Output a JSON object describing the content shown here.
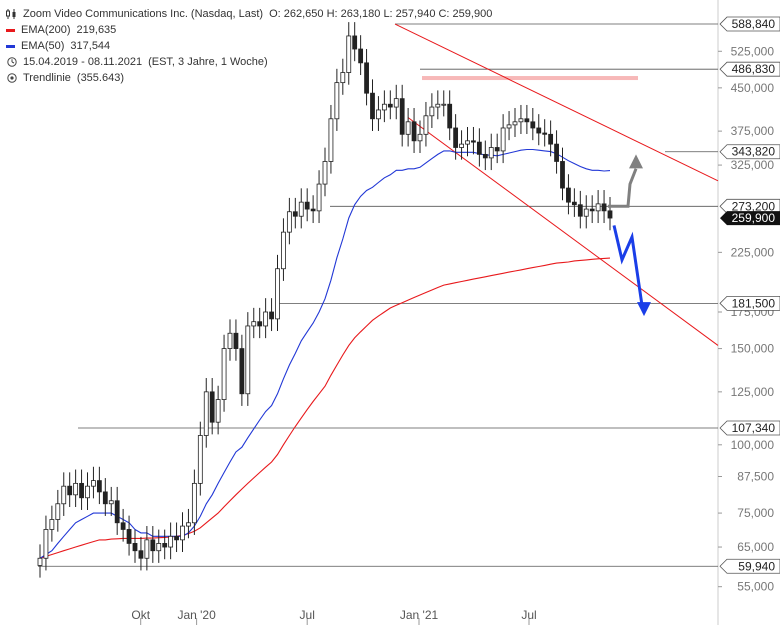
{
  "header": {
    "title": "Zoom Video Communications Inc. (Nasdaq, Last)",
    "ohlc": "O: 262,650   H: 263,180   L: 257,940   C: 259,900",
    "ema200_label": "EMA(200)",
    "ema200_value": "219,635",
    "ema50_label": "EMA(50)",
    "ema50_value": "317,544",
    "period": "15.04.2019 - 08.11.2021",
    "settings": "(EST, 3 Jahre, 1 Woche)",
    "trendline_label": "Trendlinie",
    "trendline_value": "(355.643)"
  },
  "colors": {
    "ema200": "#e8191c",
    "ema50": "#2238d6",
    "channel": "#e8191c",
    "resistance_band": "#f7b8b8",
    "arrow_up": "#808080",
    "arrow_down": "#1a3ee8",
    "level_line": "#555555",
    "last_price_bg": "#111111"
  },
  "chart_data": {
    "type": "candlestick",
    "scale": "log",
    "ylim": [
      52,
      630
    ],
    "x_ticks": [
      {
        "label": "Okt",
        "date": "2019-10-01"
      },
      {
        "label": "Jan '20",
        "date": "2020-01-01"
      },
      {
        "label": "Jul",
        "date": "2020-07-01"
      },
      {
        "label": "Jan '21",
        "date": "2021-01-01"
      },
      {
        "label": "Jul",
        "date": "2021-07-01"
      }
    ],
    "y_ticks": [
      "55,000",
      "65,000",
      "75,000",
      "87,500",
      "100,000",
      "125,000",
      "150,000",
      "175,000",
      "225,000",
      "325,000",
      "375,000",
      "450,000",
      "525,000"
    ],
    "levels": [
      "588,840",
      "486,830",
      "343,820",
      "273,200",
      "181,500",
      "107,340",
      "59,940"
    ],
    "last_price": "259,900",
    "candles_weekly_close": [
      62,
      70,
      73,
      78,
      84,
      81,
      85,
      80,
      84,
      86,
      82,
      78,
      79,
      72,
      70,
      66,
      64,
      62,
      67,
      64,
      66,
      65,
      68,
      67,
      71,
      72,
      85,
      104,
      125,
      110,
      121,
      150,
      160,
      150,
      124,
      165,
      168,
      165,
      175,
      170,
      210,
      245,
      267,
      262,
      278,
      270,
      268,
      300,
      330,
      395,
      460,
      480,
      560,
      530,
      500,
      440,
      395,
      410,
      420,
      415,
      430,
      370,
      390,
      360,
      370,
      400,
      415,
      420,
      420,
      380,
      350,
      355,
      360,
      358,
      340,
      335,
      350,
      345,
      380,
      385,
      390,
      395,
      390,
      380,
      372,
      370,
      355,
      330,
      295,
      278,
      275,
      262,
      270,
      268,
      276,
      268,
      260
    ],
    "ema50": [
      62,
      63,
      64,
      66,
      68,
      70,
      72,
      73,
      74,
      75,
      75,
      75,
      75,
      74,
      73,
      72,
      70,
      69,
      69,
      68,
      68,
      68,
      68,
      68,
      68,
      69,
      71,
      74,
      78,
      81,
      85,
      89,
      93,
      97,
      99,
      103,
      107,
      111,
      115,
      118,
      124,
      132,
      140,
      147,
      155,
      161,
      167,
      175,
      185,
      200,
      220,
      238,
      260,
      275,
      285,
      292,
      296,
      302,
      308,
      312,
      318,
      318,
      320,
      320,
      322,
      328,
      334,
      340,
      345,
      345,
      343,
      343,
      343,
      343,
      341,
      339,
      339,
      338,
      340,
      342,
      344,
      346,
      347,
      347,
      346,
      345,
      344,
      341,
      336,
      331,
      327,
      323,
      320,
      318,
      318,
      317,
      317.5
    ],
    "ema200": [
      62,
      62.5,
      63,
      63.5,
      64,
      64.5,
      65,
      65.5,
      66,
      66.5,
      67,
      67,
      67.2,
      67.3,
      67.4,
      67.4,
      67.4,
      67.4,
      67.5,
      67.5,
      67.6,
      67.7,
      67.8,
      68,
      68.3,
      68.8,
      69.5,
      70.5,
      72,
      73.5,
      75,
      77,
      79,
      81,
      83,
      85,
      87,
      89,
      91,
      93,
      96,
      100,
      104,
      108,
      112,
      116,
      120,
      124,
      128,
      134,
      140,
      146,
      152,
      157,
      161,
      165,
      169,
      172,
      175,
      178,
      180,
      182,
      184,
      186,
      188,
      190,
      192,
      194,
      196,
      197,
      198,
      199,
      200,
      201,
      202,
      203,
      204,
      205,
      206,
      207,
      208,
      209,
      210,
      211,
      212,
      213,
      214,
      215,
      215.5,
      216,
      217,
      217.5,
      218,
      218.5,
      219,
      219.3,
      219.6
    ]
  }
}
